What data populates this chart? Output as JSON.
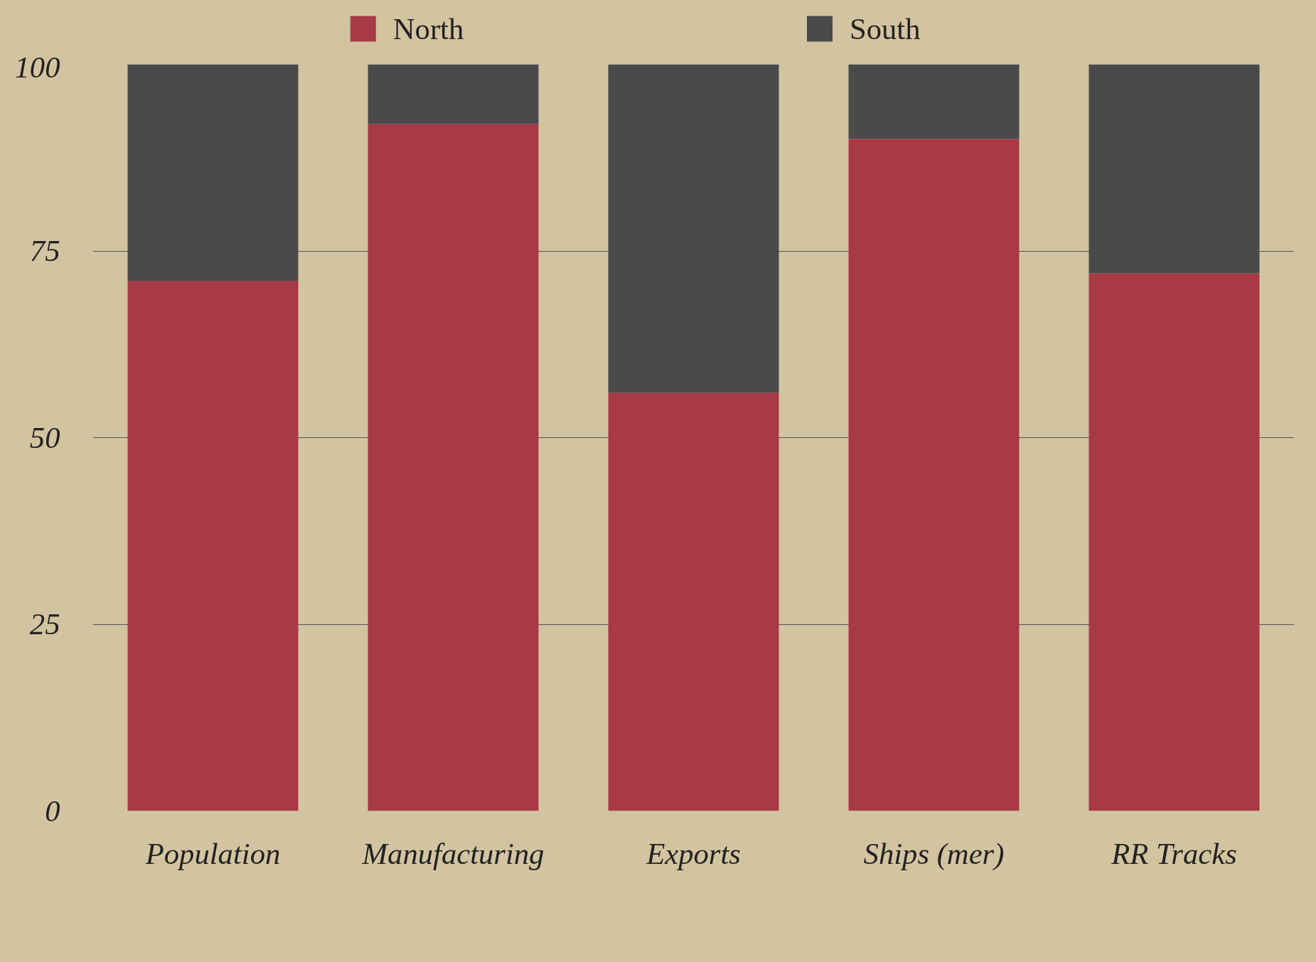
{
  "chart_data": {
    "type": "bar",
    "stacked": true,
    "categories": [
      "Population",
      "Manufacturing",
      "Exports",
      "Ships (mer)",
      "RR Tracks"
    ],
    "series": [
      {
        "name": "North",
        "color": "#a83a45",
        "values": [
          71,
          92,
          56,
          90,
          72
        ]
      },
      {
        "name": "South",
        "color": "#4a4a4a",
        "values": [
          29,
          8,
          44,
          10,
          28
        ]
      }
    ],
    "ylim": [
      0,
      100
    ],
    "yticks": [
      0,
      25,
      50,
      75,
      100
    ],
    "grid": "y",
    "legend": "top"
  }
}
